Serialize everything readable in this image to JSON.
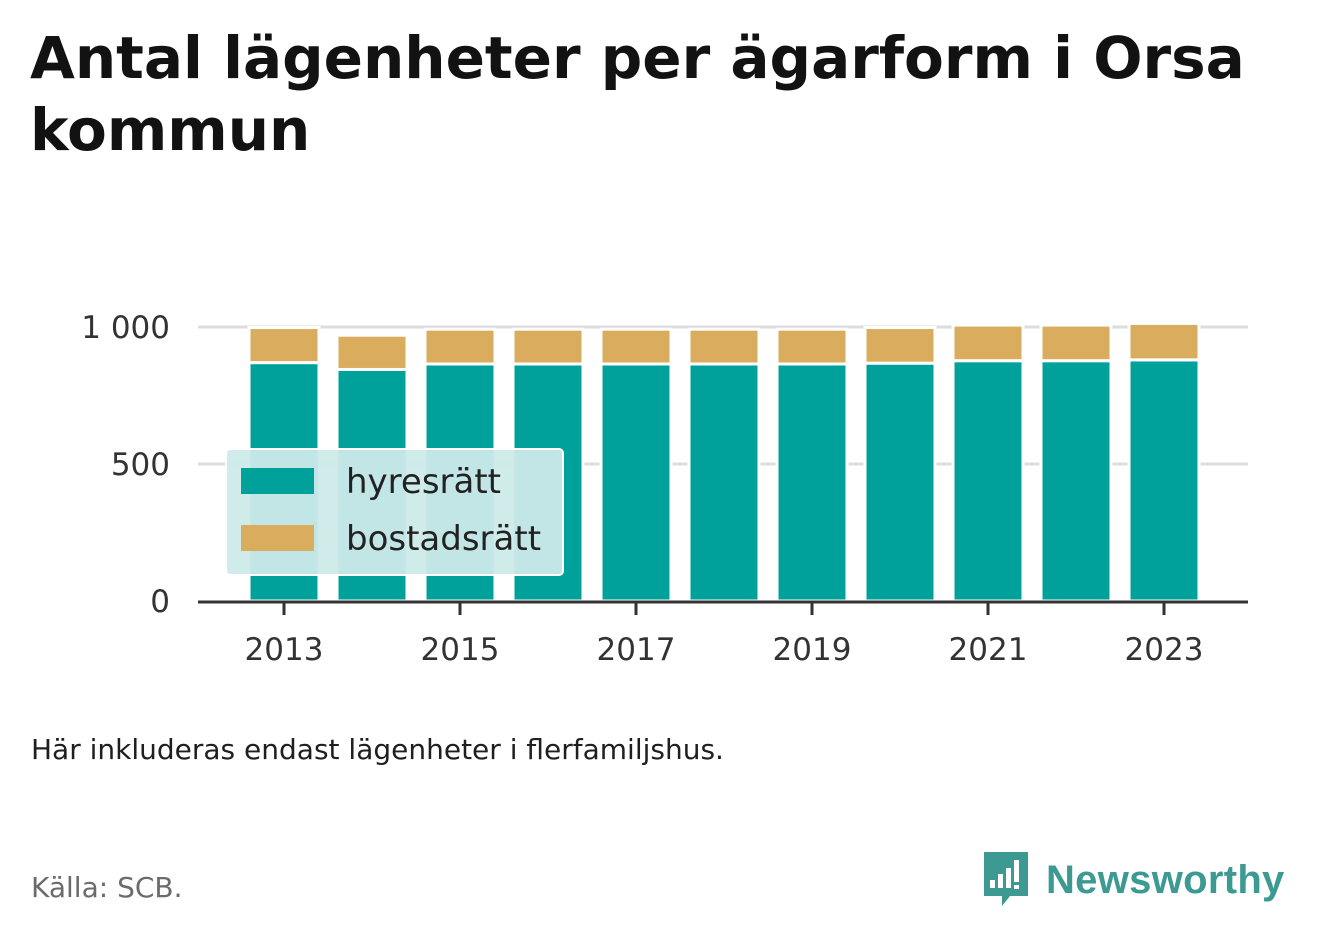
{
  "title": "Antal lägenheter per ägarform i Orsa kommun",
  "note": "Här inkluderas endast lägenheter i flerfamiljshus.",
  "source": "Källa: SCB.",
  "brand": "Newsworthy",
  "colors": {
    "hyresratt": "#00a19a",
    "bostadsratt": "#daac5e",
    "legend_bg": "#cceae9",
    "grid": "#dcdcdc",
    "axis": "#333333",
    "brand": "#3c9a92"
  },
  "chart_data": {
    "type": "bar",
    "stacked": true,
    "categories": [
      "2013",
      "2014",
      "2015",
      "2016",
      "2017",
      "2018",
      "2019",
      "2020",
      "2021",
      "2022",
      "2023"
    ],
    "series": [
      {
        "name": "hyresrätt",
        "values": [
          870,
          845,
          865,
          865,
          865,
          865,
          865,
          868,
          877,
          877,
          880
        ]
      },
      {
        "name": "bostadsrätt",
        "values": [
          128,
          125,
          127,
          127,
          127,
          127,
          127,
          130,
          130,
          130,
          133
        ]
      }
    ],
    "x_tick_labels": [
      "2013",
      "2015",
      "2017",
      "2019",
      "2021",
      "2023"
    ],
    "y_ticks": [
      0,
      500,
      1000
    ],
    "y_tick_labels": [
      "0",
      "500",
      "1 000"
    ],
    "ylim": [
      0,
      1000
    ],
    "grid": "horizontal",
    "legend_position": "inside-bottom-left"
  }
}
